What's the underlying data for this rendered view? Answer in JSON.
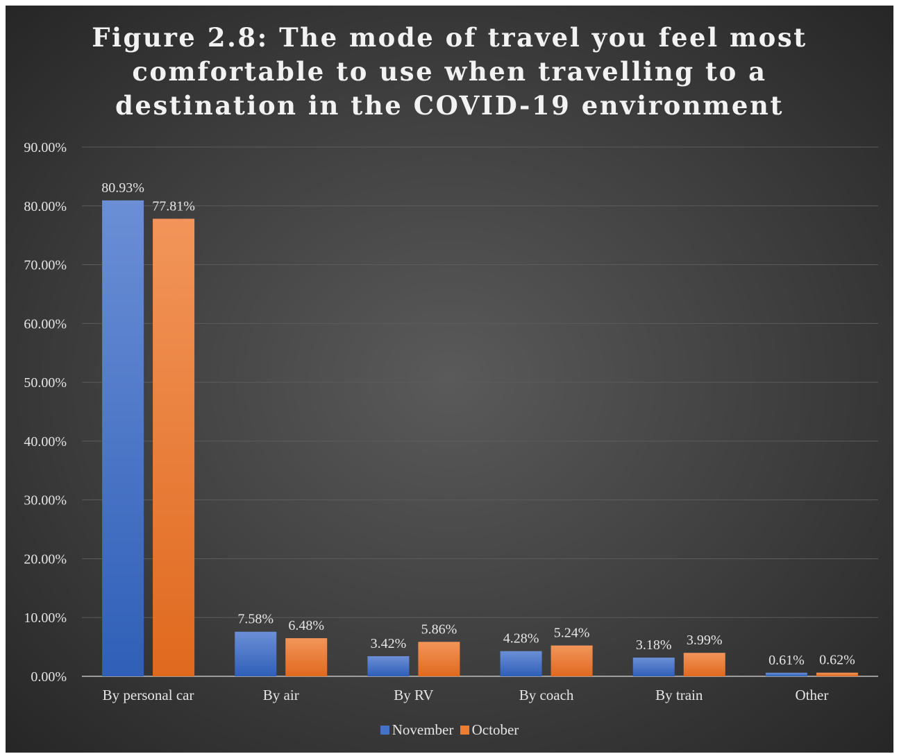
{
  "chart_data": {
    "type": "bar",
    "title_lines": [
      "Figure 2.8: The mode of travel you feel most",
      "comfortable to use when travelling to a",
      "destination in the COVID-19 environment"
    ],
    "categories": [
      "By personal car",
      "By air",
      "By RV",
      "By coach",
      "By train",
      "Other"
    ],
    "series": [
      {
        "name": "November",
        "values": [
          80.93,
          7.58,
          3.42,
          4.28,
          3.18,
          0.61
        ],
        "labels": [
          "80.93%",
          "7.58%",
          "3.42%",
          "4.28%",
          "3.18%",
          "0.61%"
        ],
        "color": "#4472c4"
      },
      {
        "name": "October",
        "values": [
          77.81,
          6.48,
          5.86,
          5.24,
          3.99,
          0.62
        ],
        "labels": [
          "77.81%",
          "6.48%",
          "5.86%",
          "5.24%",
          "3.99%",
          "0.62%"
        ],
        "color": "#ed7d31"
      }
    ],
    "yticks": [
      "0.00%",
      "10.00%",
      "20.00%",
      "30.00%",
      "40.00%",
      "50.00%",
      "60.00%",
      "70.00%",
      "80.00%",
      "90.00%"
    ],
    "ylim": [
      0,
      90
    ],
    "grid": true,
    "legend_position": "bottom"
  }
}
